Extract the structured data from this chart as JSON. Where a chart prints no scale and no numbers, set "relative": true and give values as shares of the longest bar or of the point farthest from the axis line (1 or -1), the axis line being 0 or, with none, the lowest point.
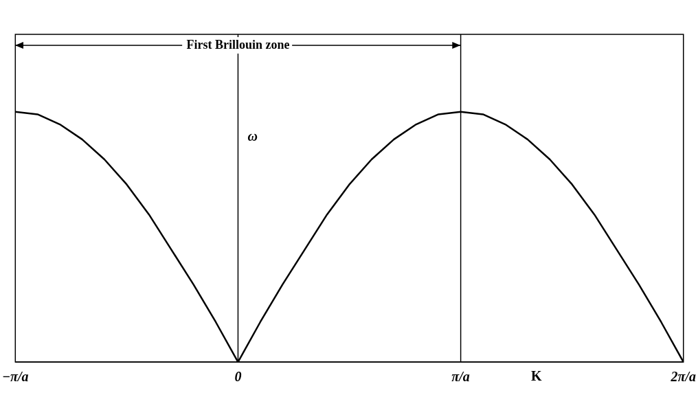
{
  "chart_data": {
    "type": "line",
    "relative": true,
    "ylabel": "ω",
    "xlabel": "K",
    "x": [
      -1,
      -0.9,
      -0.8,
      -0.7,
      -0.6,
      -0.5,
      -0.4,
      -0.3,
      -0.2,
      -0.1,
      0,
      0.1,
      0.2,
      0.3,
      0.4,
      0.5,
      0.6,
      0.7,
      0.8,
      0.9,
      1,
      1.1,
      1.2,
      1.3,
      1.4,
      1.5,
      1.6,
      1.7,
      1.8,
      1.9,
      2
    ],
    "series": [
      {
        "color": "#000000",
        "values": [
          1,
          0.99,
          0.95,
          0.89,
          0.81,
          0.71,
          0.59,
          0.45,
          0.31,
          0.16,
          0,
          0.16,
          0.31,
          0.45,
          0.59,
          0.71,
          0.81,
          0.89,
          0.95,
          0.99,
          1,
          0.99,
          0.95,
          0.89,
          0.81,
          0.71,
          0.59,
          0.45,
          0.31,
          0.16,
          0
        ]
      }
    ],
    "xlim": [
      -1,
      2
    ],
    "xticks": [
      {
        "value": -1,
        "label": "−π/a"
      },
      {
        "value": 0,
        "label": "0"
      },
      {
        "value": 1,
        "label": "π/a"
      },
      {
        "value": 2,
        "label": "2π/a"
      }
    ],
    "ref_lines": [
      {
        "axis": "x",
        "value": 0
      },
      {
        "axis": "x",
        "value": 1
      }
    ],
    "annotations": [
      "First Brillouin zone"
    ],
    "grid": false,
    "legend": false,
    "marker": "none",
    "line_style": "solid"
  }
}
